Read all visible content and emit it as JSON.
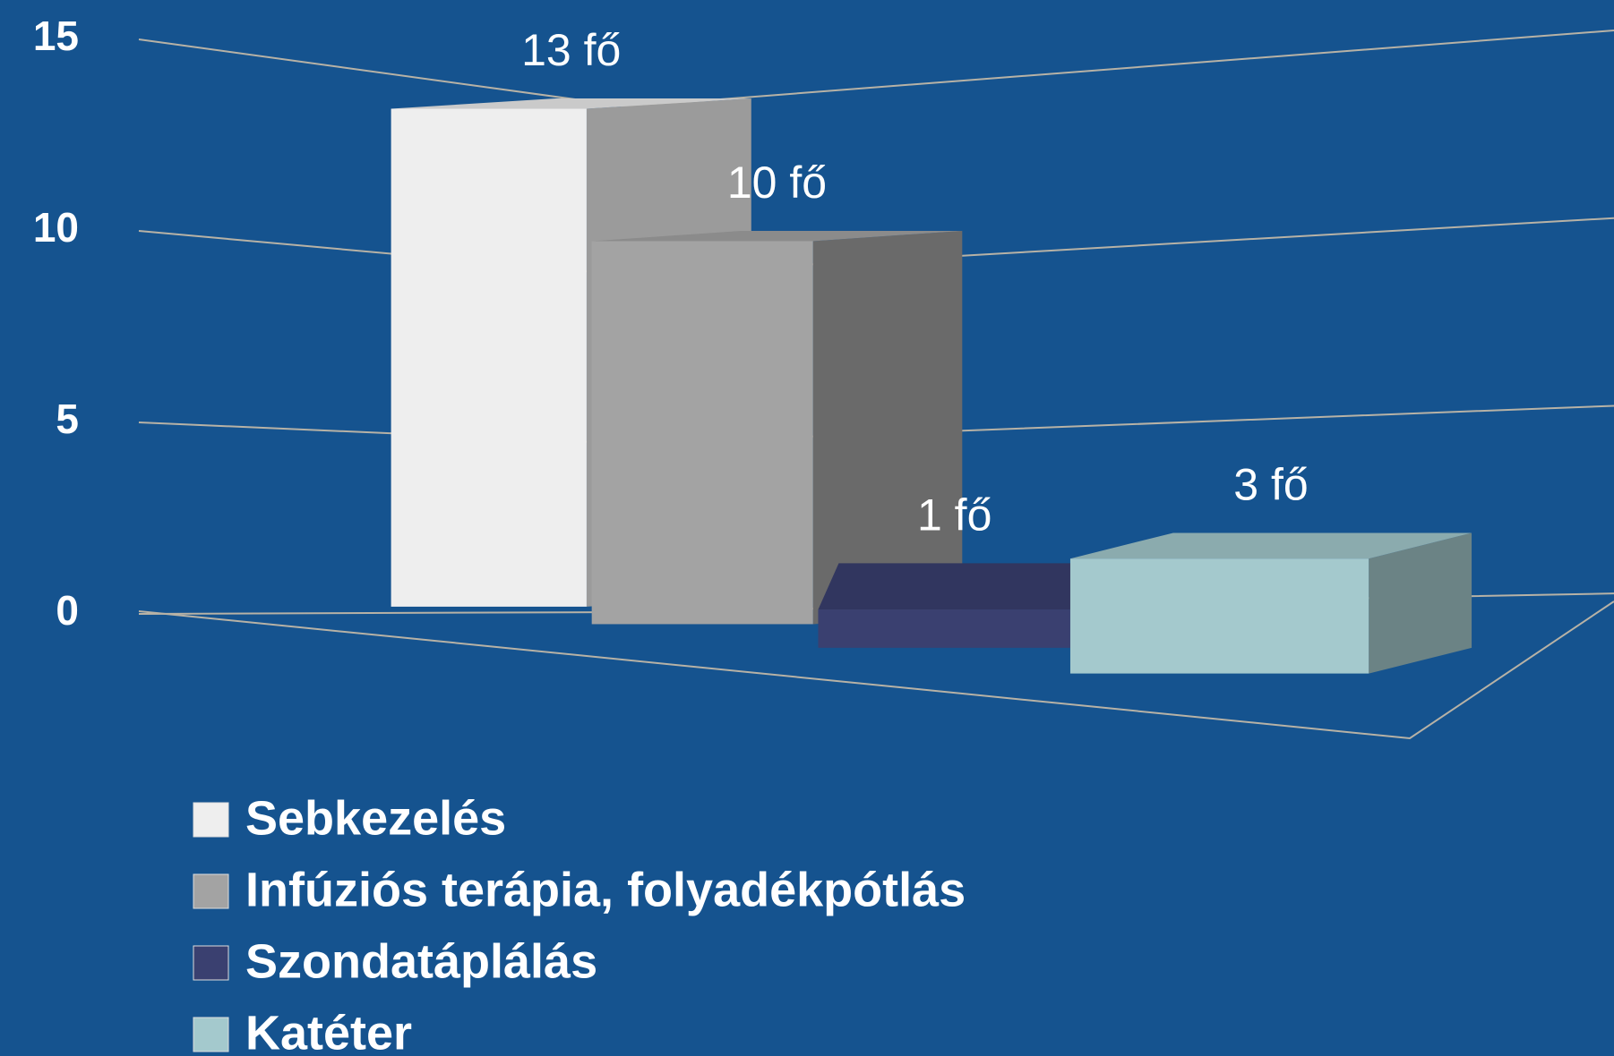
{
  "chart_data": {
    "type": "bar",
    "series": [
      {
        "name": "Sebkezelés",
        "color": "#eeeeee",
        "values": [
          13
        ],
        "value_labels": [
          "13 fő"
        ]
      },
      {
        "name": "Infúziós terápia, folyadékpótlás",
        "color": "#a3a3a3",
        "values": [
          10
        ],
        "value_labels": [
          "10 fő"
        ]
      },
      {
        "name": "Szondatáplálás",
        "color": "#3a4070",
        "values": [
          1
        ],
        "value_labels": [
          "1 fő"
        ]
      },
      {
        "name": "Katéter",
        "color": "#a4c9cd",
        "values": [
          3
        ],
        "value_labels": [
          "3 fő"
        ]
      }
    ],
    "ylim": [
      0,
      15
    ],
    "yticks": [
      0,
      5,
      10,
      15
    ],
    "grid": true,
    "legend": "bottom"
  }
}
